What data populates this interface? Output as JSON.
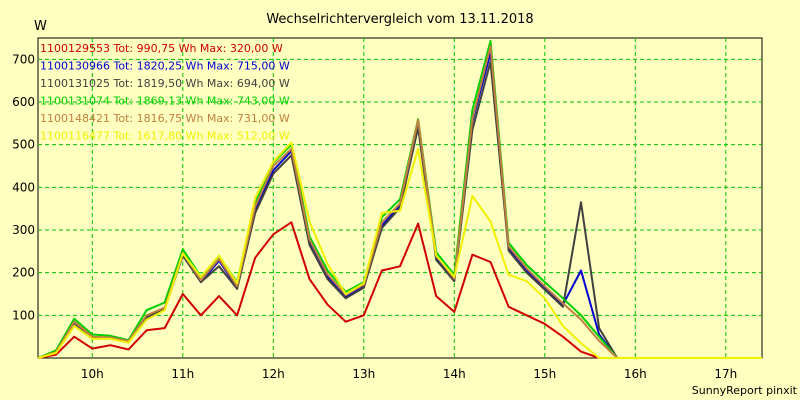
{
  "chart_data": {
    "type": "line",
    "title": "Wechselrichtervergleich vom 13.11.2018",
    "ylabel": "W",
    "footer": "SunnyReport pinxit",
    "ylim": [
      0,
      750
    ],
    "xlim": [
      9.4,
      17.4
    ],
    "yticks": [
      100,
      200,
      300,
      400,
      500,
      600,
      700
    ],
    "xticks": [
      {
        "value": 10,
        "label": "10h"
      },
      {
        "value": 11,
        "label": "11h"
      },
      {
        "value": 12,
        "label": "12h"
      },
      {
        "value": 13,
        "label": "13h"
      },
      {
        "value": 14,
        "label": "14h"
      },
      {
        "value": 15,
        "label": "15h"
      },
      {
        "value": 16,
        "label": "16h"
      },
      {
        "value": 17,
        "label": "17h"
      }
    ],
    "grid": true,
    "x": [
      9.4,
      9.6,
      9.8,
      10.0,
      10.2,
      10.4,
      10.6,
      10.8,
      11.0,
      11.2,
      11.4,
      11.6,
      11.8,
      12.0,
      12.2,
      12.4,
      12.6,
      12.8,
      13.0,
      13.2,
      13.4,
      13.6,
      13.8,
      14.0,
      14.2,
      14.4,
      14.6,
      14.8,
      15.0,
      15.2,
      15.4,
      15.6,
      15.8,
      16.0,
      16.2,
      16.4,
      16.6,
      16.8,
      17.0,
      17.2,
      17.4
    ],
    "series": [
      {
        "name": "1100129553",
        "legend": "1100129553 Tot: 990,75 Wh Max: 320,00 W",
        "color": "#d00000",
        "values": [
          0,
          8,
          50,
          22,
          30,
          20,
          65,
          70,
          150,
          100,
          145,
          100,
          235,
          290,
          318,
          185,
          125,
          85,
          100,
          205,
          215,
          315,
          145,
          108,
          242,
          225,
          120,
          100,
          80,
          50,
          15,
          0,
          0,
          0,
          0,
          0,
          0,
          0,
          0,
          0,
          0
        ]
      },
      {
        "name": "1100130966",
        "legend": "1100130966 Tot: 1820,25 Wh Max: 715,00 W",
        "color": "#0000d0",
        "values": [
          0,
          15,
          82,
          48,
          47,
          38,
          95,
          115,
          242,
          178,
          228,
          165,
          345,
          440,
          485,
          275,
          190,
          142,
          168,
          310,
          358,
          545,
          235,
          182,
          555,
          715,
          258,
          205,
          165,
          125,
          205,
          55,
          0,
          0,
          0,
          0,
          0,
          0,
          0,
          0,
          0
        ]
      },
      {
        "name": "1100131025",
        "legend": "1100131025 Tot: 1819,50 Wh Max: 694,00 W",
        "color": "#404040",
        "values": [
          0,
          15,
          82,
          48,
          47,
          38,
          95,
          115,
          240,
          178,
          215,
          162,
          340,
          432,
          475,
          265,
          185,
          140,
          165,
          305,
          352,
          540,
          230,
          180,
          535,
          694,
          252,
          200,
          160,
          120,
          365,
          70,
          0,
          0,
          0,
          0,
          0,
          0,
          0,
          0,
          0
        ]
      },
      {
        "name": "1100131074",
        "legend": "1100131074 Tot: 1869,13 Wh Max: 743,00 W",
        "color": "#00d000",
        "values": [
          0,
          18,
          92,
          55,
          52,
          42,
          112,
          130,
          255,
          190,
          238,
          178,
          365,
          458,
          500,
          285,
          205,
          155,
          178,
          330,
          372,
          560,
          248,
          195,
          582,
          743,
          270,
          218,
          178,
          140,
          100,
          50,
          0,
          0,
          0,
          0,
          0,
          0,
          0,
          0,
          0
        ]
      },
      {
        "name": "1100148421",
        "legend": "1100148421 Tot: 1816,75 Wh Max: 731,00 W",
        "color": "#c08040",
        "values": [
          0,
          14,
          85,
          50,
          48,
          40,
          100,
          118,
          246,
          182,
          232,
          168,
          355,
          450,
          490,
          278,
          196,
          148,
          172,
          318,
          362,
          558,
          240,
          186,
          560,
          731,
          262,
          210,
          168,
          128,
          90,
          40,
          0,
          0,
          0,
          0,
          0,
          0,
          0,
          0,
          0
        ]
      },
      {
        "name": "1100116477",
        "legend": "1100116477 Tot: 1617,80 Wh Max: 512,00 W",
        "color": "#f0f000",
        "values": [
          0,
          12,
          75,
          45,
          45,
          36,
          90,
          112,
          245,
          190,
          240,
          175,
          375,
          460,
          505,
          320,
          220,
          150,
          175,
          340,
          345,
          490,
          240,
          190,
          380,
          320,
          195,
          180,
          140,
          75,
          35,
          0,
          0,
          0,
          0,
          0,
          0,
          0,
          0,
          0,
          0
        ]
      }
    ]
  }
}
